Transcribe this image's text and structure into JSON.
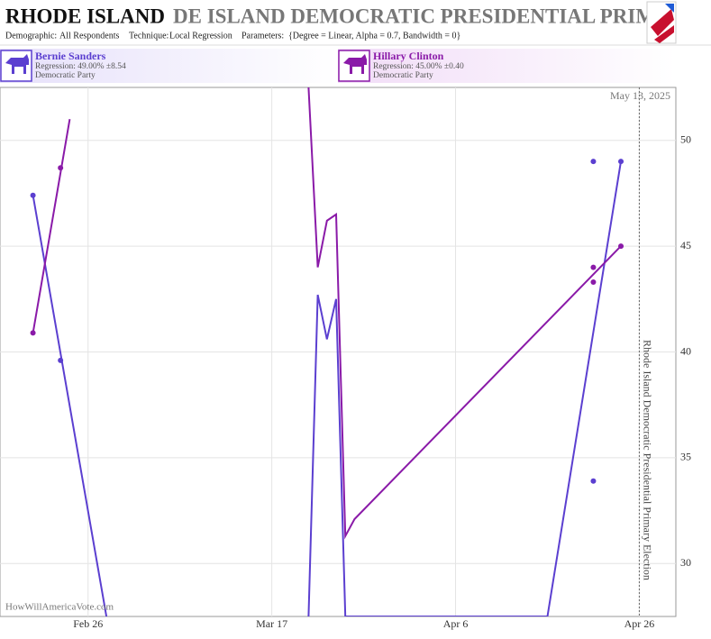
{
  "header": {
    "title_bold": "RHODE ISLAND",
    "title_scroll": "DE ISLAND DEMOCRATIC PRESIDENTIAL PRIMA",
    "demographic_label": "Demographic:",
    "demographic": "All Respondents",
    "technique_label": "Technique:",
    "technique": "Local Regression",
    "parameters_label": "Parameters:",
    "parameters": "{Degree = Linear, Alpha = 0.7, Bandwidth = 0}"
  },
  "chart_data": {
    "type": "scatter",
    "date": "May 13, 2025",
    "watermark": "HowWillAmericaVote.com",
    "event": {
      "x": "Apr 26",
      "label": "Rhode Island Democratic Presidential Primary Election"
    },
    "xlim": [
      "Feb 17",
      "Apr 29"
    ],
    "xticks": [
      "Feb 26",
      "Mar 17",
      "Apr 6",
      "Apr 26"
    ],
    "ylim": [
      27.5,
      52.5
    ],
    "yticks": [
      30,
      35,
      40,
      45,
      50
    ],
    "grid": true,
    "series": [
      {
        "name": "Bernie Sanders",
        "regression": "Regression: 49.00% ±8.54",
        "party": "Democratic Party",
        "color": "#5b3fd0",
        "x": [
          "Feb 20",
          "Feb 23",
          "Apr 21",
          "Apr 21",
          "Apr 24"
        ],
        "values": [
          47.4,
          39.6,
          49,
          33.9,
          49
        ],
        "trend": {
          "x": [
            "Feb 20",
            "Feb 28",
            "Mar 21",
            "Mar 21",
            "Mar 22",
            "Mar 23",
            "Mar 24",
            "Mar 25",
            "Apr 16",
            "Apr 24"
          ],
          "values": [
            47.4,
            27.5,
            null,
            27.5,
            42.7,
            40.6,
            42.5,
            27.5,
            27.5,
            49
          ]
        }
      },
      {
        "name": "Hillary Clinton",
        "regression": "Regression: 45.00% ±0.40",
        "party": "Democratic Party",
        "color": "#8a1aa8",
        "x": [
          "Feb 20",
          "Feb 23",
          "Apr 21",
          "Apr 21",
          "Apr 24"
        ],
        "values": [
          40.9,
          48.7,
          44.0,
          43.3,
          45.0
        ],
        "trend": {
          "x": [
            "Feb 20",
            "Feb 24",
            "Mar 21",
            "Mar 21",
            "Mar 22",
            "Mar 23",
            "Mar 24",
            "Mar 25",
            "Mar 26",
            "Apr 24"
          ],
          "values": [
            40.9,
            51.0,
            null,
            52.5,
            44.0,
            46.2,
            46.5,
            31.3,
            32.1,
            45.0
          ]
        }
      }
    ]
  }
}
